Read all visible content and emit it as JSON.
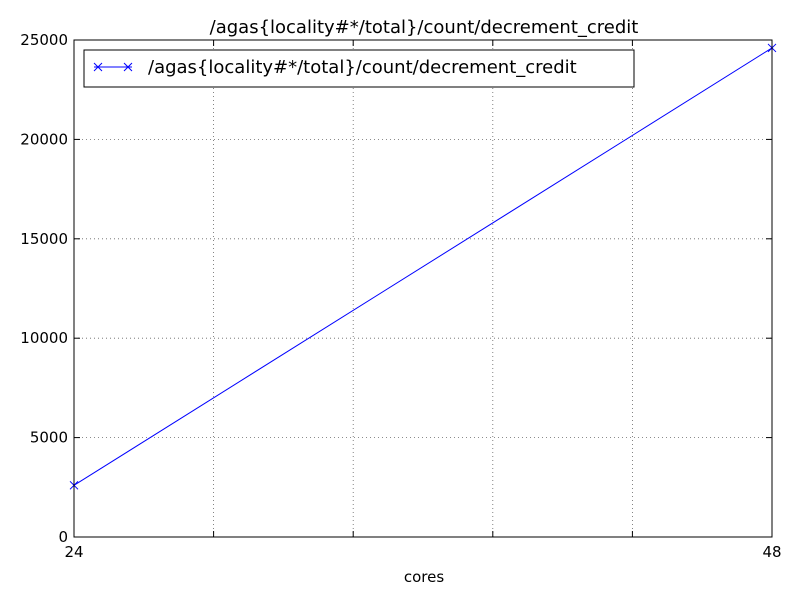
{
  "chart_data": {
    "type": "line",
    "title": "/agas{locality#*/total}/count/decrement_credit",
    "xlabel": "cores",
    "ylabel": "",
    "x": [
      24,
      48
    ],
    "xlim": [
      24,
      48
    ],
    "ylim": [
      0,
      25000
    ],
    "xticks": [
      24,
      48
    ],
    "xtick_labels": [
      "24",
      "48"
    ],
    "yticks": [
      0,
      5000,
      10000,
      15000,
      20000,
      25000
    ],
    "ytick_labels": [
      "0",
      "5000",
      "10000",
      "15000",
      "20000",
      "25000"
    ],
    "x_grid_positions": [
      24,
      28.8,
      33.6,
      38.4,
      43.2,
      48
    ],
    "grid": true,
    "legend_position": "top-left",
    "series": [
      {
        "name": "/agas{locality#*/total}/count/decrement_credit",
        "x": [
          24,
          48
        ],
        "values": [
          2600,
          24600
        ],
        "color": "#0000ff",
        "marker": "x"
      }
    ]
  }
}
